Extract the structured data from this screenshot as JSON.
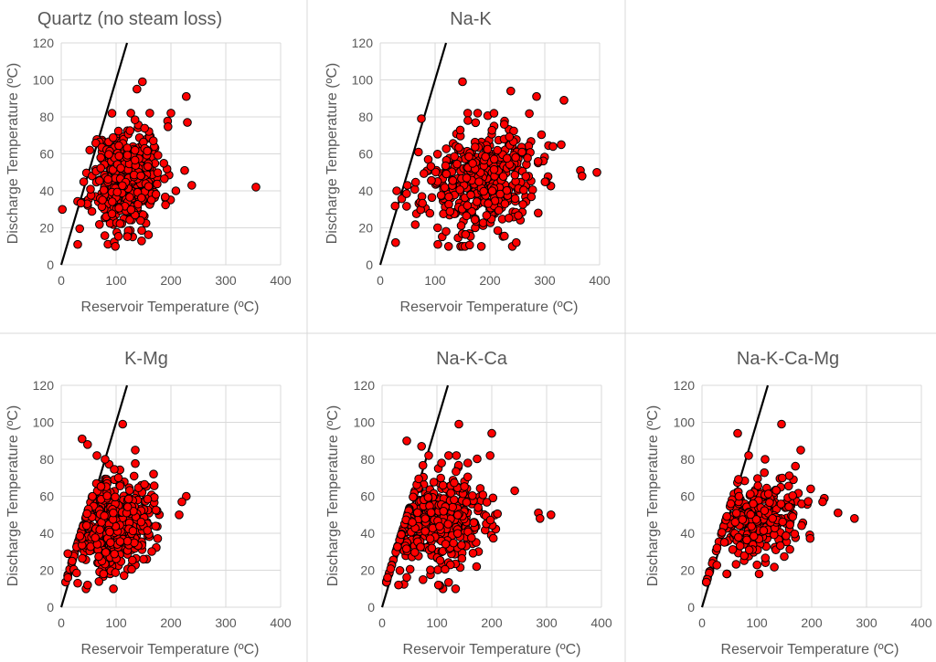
{
  "figure": {
    "background": "#ffffff",
    "divider_color": "#d9d9d9",
    "grid_color": "#d9d9d9",
    "text_color": "#595959",
    "point_fill": "#ff0000",
    "point_stroke": "#000000",
    "line_color": "#000000"
  },
  "chart_data": [
    {
      "type": "scatter",
      "title": "Quartz (no steam loss)",
      "xlabel": "Reservoir Temperature (ºC)",
      "ylabel": "Discharge Temperature (ºC)",
      "xlim": [
        0,
        400
      ],
      "ylim": [
        0,
        120
      ],
      "xticks": [
        0,
        100,
        200,
        300,
        400
      ],
      "yticks": [
        0,
        20,
        40,
        60,
        80,
        100,
        120
      ],
      "grid": true,
      "reference_line": {
        "name": "1:1 line",
        "x": [
          0,
          120
        ],
        "y": [
          0,
          120
        ]
      },
      "cloud": {
        "seed": 11,
        "n": 440,
        "xc": 120,
        "xs": 32,
        "yc": 47,
        "ys": 14,
        "ymin": 10,
        "ymax": 82
      },
      "points": [
        [
          2,
          30
        ],
        [
          225,
          51
        ],
        [
          230,
          77
        ],
        [
          228,
          91
        ],
        [
          238,
          43
        ],
        [
          200,
          82
        ],
        [
          355,
          42
        ],
        [
          148,
          99
        ],
        [
          138,
          95
        ],
        [
          30,
          11
        ],
        [
          52,
          62
        ],
        [
          72,
          58
        ]
      ]
    },
    {
      "type": "scatter",
      "title": "Na-K",
      "xlabel": "Reservoir Temperature (ºC)",
      "ylabel": "Discharge Temperature (ºC)",
      "xlim": [
        0,
        400
      ],
      "ylim": [
        0,
        120
      ],
      "xticks": [
        0,
        100,
        200,
        300,
        400
      ],
      "yticks": [
        0,
        20,
        40,
        60,
        80,
        100,
        120
      ],
      "grid": true,
      "reference_line": {
        "name": "1:1 line",
        "x": [
          0,
          120
        ],
        "y": [
          0,
          120
        ]
      },
      "cloud": {
        "seed": 23,
        "n": 440,
        "xc": 180,
        "xs": 52,
        "yc": 45,
        "ys": 14,
        "ymin": 10,
        "ymax": 82
      },
      "points": [
        [
          28,
          12
        ],
        [
          75,
          79
        ],
        [
          150,
          99
        ],
        [
          238,
          94
        ],
        [
          285,
          91
        ],
        [
          335,
          89
        ],
        [
          365,
          51
        ],
        [
          368,
          48
        ],
        [
          395,
          50
        ],
        [
          315,
          64
        ],
        [
          330,
          65
        ],
        [
          288,
          28
        ],
        [
          248,
          12
        ],
        [
          105,
          11
        ],
        [
          30,
          40
        ]
      ]
    },
    {
      "type": "scatter",
      "title": "K-Mg",
      "xlabel": "Reservoir Temperature (ºC)",
      "ylabel": "Discharge Temperature (ºC)",
      "xlim": [
        0,
        400
      ],
      "ylim": [
        0,
        120
      ],
      "xticks": [
        0,
        100,
        200,
        300,
        400
      ],
      "yticks": [
        0,
        20,
        40,
        60,
        80,
        100,
        120
      ],
      "grid": true,
      "reference_line": {
        "name": "1:1 line",
        "x": [
          0,
          120
        ],
        "y": [
          0,
          120
        ]
      },
      "cloud": {
        "seed": 37,
        "n": 440,
        "xc": 95,
        "xs": 35,
        "yc": 46,
        "ys": 13,
        "ymin": 10,
        "ymax": 78
      },
      "points": [
        [
          38,
          91
        ],
        [
          48,
          88
        ],
        [
          112,
          99
        ],
        [
          65,
          82
        ],
        [
          80,
          80
        ],
        [
          135,
          85
        ],
        [
          228,
          60
        ],
        [
          220,
          57
        ],
        [
          215,
          50
        ],
        [
          12,
          16
        ],
        [
          30,
          13
        ],
        [
          48,
          12
        ],
        [
          12,
          29
        ]
      ]
    },
    {
      "type": "scatter",
      "title": "Na-K-Ca",
      "xlabel": "Reservoir Temperature (ºC)",
      "ylabel": "Discharge Temperature (ºC)",
      "xlim": [
        0,
        400
      ],
      "ylim": [
        0,
        120
      ],
      "xticks": [
        0,
        100,
        200,
        300,
        400
      ],
      "yticks": [
        0,
        20,
        40,
        60,
        80,
        100,
        120
      ],
      "grid": true,
      "reference_line": {
        "name": "1:1 line",
        "x": [
          0,
          120
        ],
        "y": [
          0,
          120
        ]
      },
      "cloud": {
        "seed": 53,
        "n": 440,
        "xc": 105,
        "xs": 50,
        "yc": 46,
        "ys": 13,
        "ymin": 10,
        "ymax": 82
      },
      "points": [
        [
          140,
          99
        ],
        [
          200,
          94
        ],
        [
          45,
          90
        ],
        [
          72,
          87
        ],
        [
          85,
          82
        ],
        [
          285,
          51
        ],
        [
          288,
          48
        ],
        [
          308,
          50
        ],
        [
          10,
          16
        ],
        [
          30,
          12
        ]
      ]
    },
    {
      "type": "scatter",
      "title": "Na-K-Ca-Mg",
      "xlabel": "Reservoir Temperature (ºC)",
      "ylabel": "Discharge Temperature (ºC)",
      "xlim": [
        0,
        400
      ],
      "ylim": [
        0,
        120
      ],
      "xticks": [
        0,
        100,
        200,
        300,
        400
      ],
      "yticks": [
        0,
        20,
        40,
        60,
        80,
        100,
        120
      ],
      "grid": true,
      "reference_line": {
        "name": "1:1 line",
        "x": [
          0,
          120
        ],
        "y": [
          0,
          120
        ]
      },
      "cloud": {
        "seed": 71,
        "n": 320,
        "xc": 100,
        "xs": 45,
        "yc": 47,
        "ys": 11,
        "ymin": 18,
        "ymax": 78
      },
      "points": [
        [
          145,
          99
        ],
        [
          65,
          94
        ],
        [
          85,
          82
        ],
        [
          115,
          80
        ],
        [
          180,
          85
        ],
        [
          248,
          51
        ],
        [
          278,
          48
        ],
        [
          220,
          57
        ],
        [
          45,
          18
        ]
      ]
    }
  ]
}
